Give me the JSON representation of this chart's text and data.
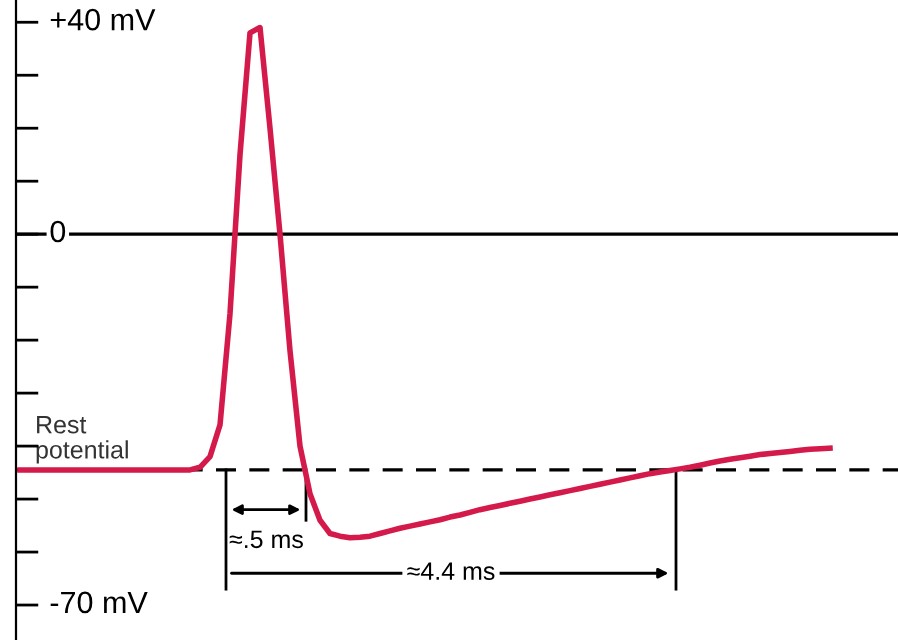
{
  "chart_data": {
    "type": "line",
    "categories": [
      null,
      null,
      null,
      null,
      null,
      null,
      null,
      null,
      null,
      null,
      null,
      null,
      null,
      null,
      null,
      null,
      null,
      null,
      null,
      null,
      null,
      null,
      null,
      null,
      null,
      null,
      null,
      null,
      null,
      null,
      null,
      null,
      null,
      null,
      null,
      null,
      null,
      null,
      null,
      null,
      null,
      null,
      null,
      null,
      null,
      null,
      null,
      null,
      null,
      null,
      null,
      null,
      null,
      null,
      null,
      null,
      null,
      null,
      null,
      null,
      null,
      null,
      null,
      null,
      null,
      null,
      null,
      null,
      null,
      null,
      null,
      null,
      null,
      null,
      null,
      null,
      null,
      null,
      null,
      null,
      null,
      null
    ],
    "series": [
      {
        "color": "#d41a4a",
        "values": [
          -44.5,
          -44.5,
          -44.5,
          -44.5,
          -44.5,
          -44.5,
          -44.5,
          -44.5,
          -44.5,
          -44.5,
          -44.5,
          -44.5,
          -44.5,
          -44.5,
          -44.5,
          -44.5,
          -44.5,
          -44.5,
          -44,
          -42,
          -36,
          -15,
          15,
          38,
          39,
          20,
          0,
          -22,
          -40,
          -49,
          -54,
          -56.5,
          -57,
          -57.3,
          -57.2,
          -57,
          -56.5,
          -56,
          -55.5,
          -55.1,
          -54.7,
          -54.3,
          -53.9,
          -53.4,
          -53,
          -52.5,
          -52,
          -51.6,
          -51.2,
          -50.8,
          -50.4,
          -50,
          -49.6,
          -49.2,
          -48.8,
          -48.4,
          -48,
          -47.6,
          -47.2,
          -46.8,
          -46.4,
          -46,
          -45.6,
          -45.2,
          -44.9,
          -44.6,
          -44.3,
          -44,
          -43.6,
          -43.2,
          -42.8,
          -42.5,
          -42.2,
          -41.9,
          -41.6,
          -41.4,
          -41.2,
          -41,
          -40.8,
          -40.6,
          -40.5,
          -40.4
        ]
      }
    ],
    "ylim": [
      -76.6,
      44.2
    ],
    "yticks": [
      {
        "value": 40,
        "label": "+40 mV"
      },
      {
        "value": 30,
        "label": null
      },
      {
        "value": 20,
        "label": null
      },
      {
        "value": 10,
        "label": null
      },
      0,
      {
        "value": -10,
        "label": null
      },
      {
        "value": -20,
        "label": null
      },
      {
        "value": -30,
        "label": null
      },
      {
        "value": -40,
        "label": null
      },
      {
        "value": -50,
        "label": null
      },
      {
        "value": -60,
        "label": null
      },
      {
        "value": -70,
        "label": "-70 mV"
      }
    ],
    "tick_labels": "y",
    "ref_lines": [
      {
        "axis": "y",
        "value": 0,
        "color": "#000000",
        "line_style": "solid"
      },
      {
        "axis": "y",
        "value": -44.5,
        "label": "Rest potential",
        "color": "#000000",
        "line_style": "dashed"
      }
    ],
    "annotations": [
      "≈.5 ms",
      "≈4.4 ms"
    ]
  }
}
